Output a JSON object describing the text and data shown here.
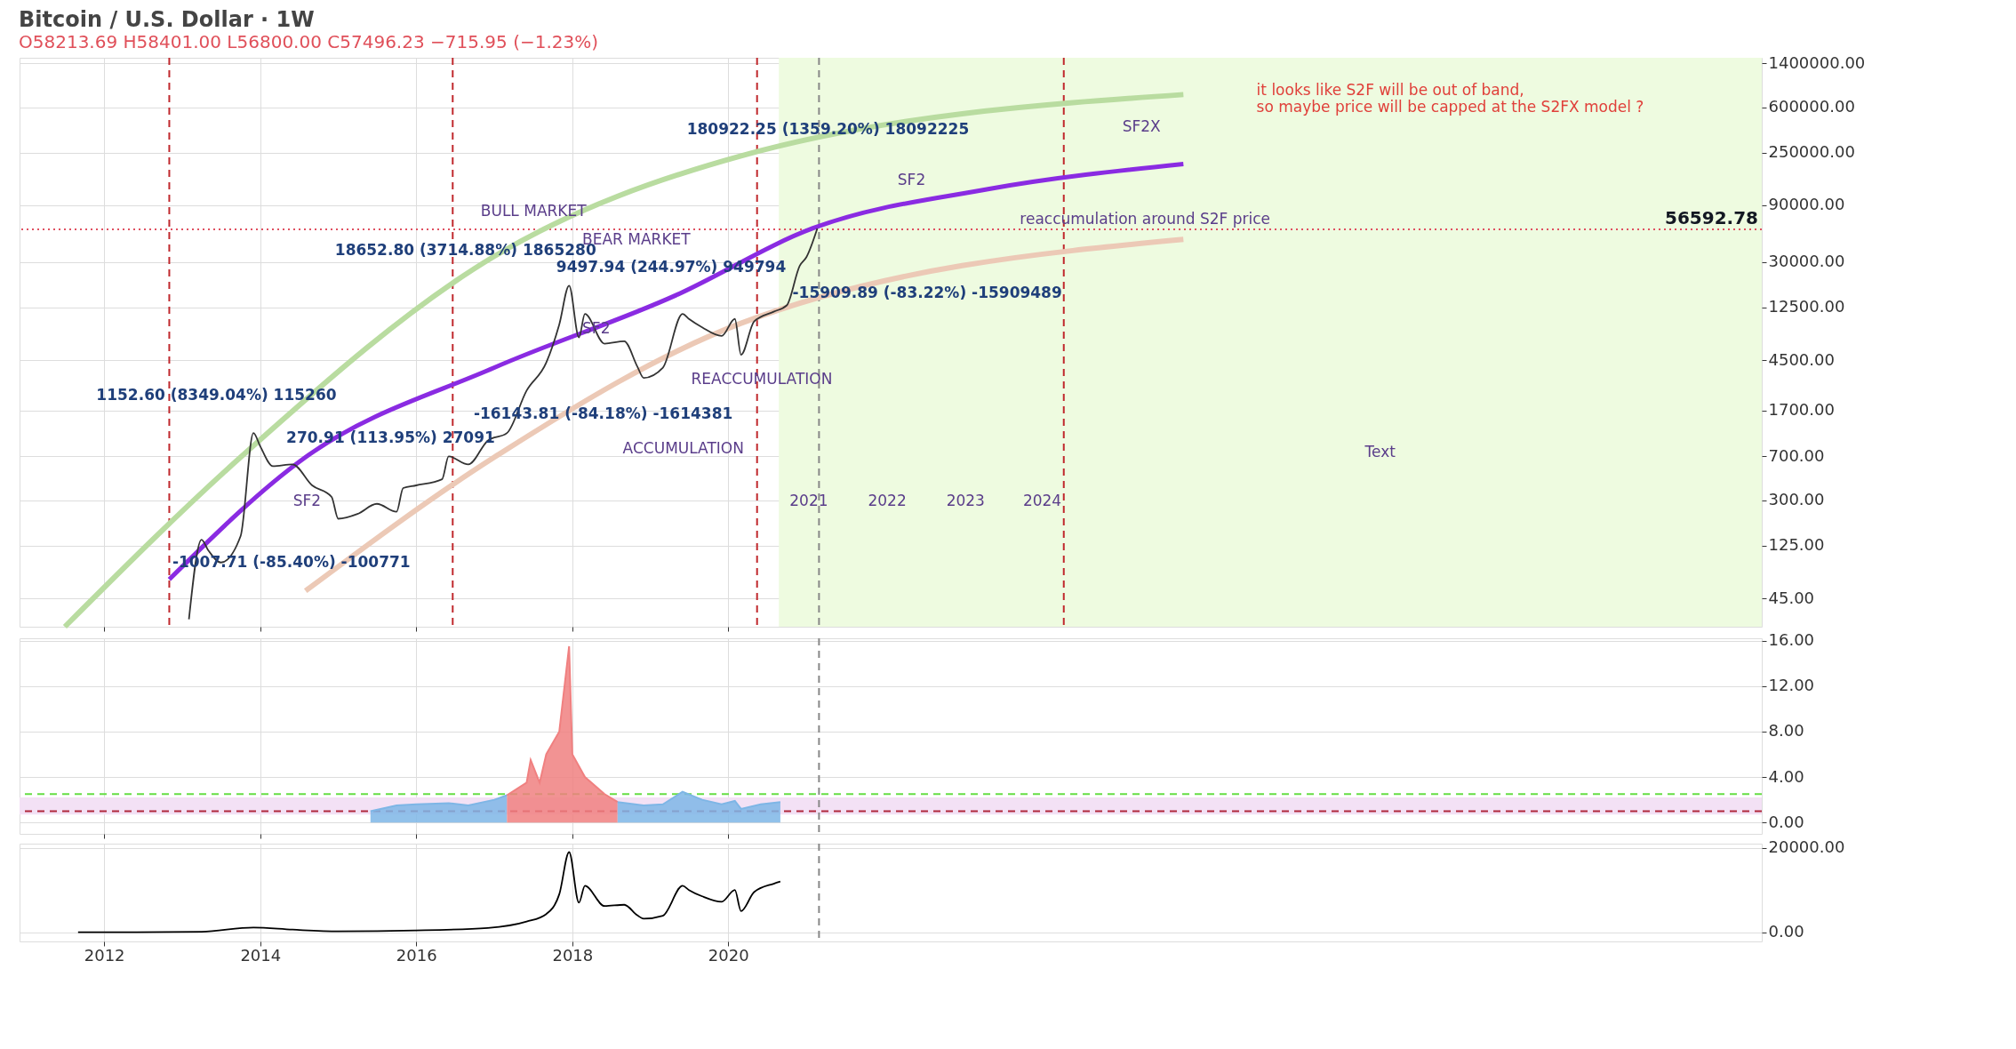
{
  "chart_data": [
    {
      "type": "line",
      "title": "Bitcoin / U.S. Dollar · 1W",
      "subtitle": "O58213.69 H58401.00 L56800.00 C57496.23 −715.95 (−1.23%)",
      "log": "y",
      "grid": true,
      "tick_labels": "y",
      "xlim": [
        "2010-12-01",
        "2033-04-01"
      ],
      "xticks": [
        "2012",
        "2014",
        "2016",
        "2018",
        "2020"
      ],
      "ylim": [
        26,
        1560000
      ],
      "yticks": [
        {
          "value": 45,
          "label": "45.00"
        },
        {
          "value": 125,
          "label": "125.00"
        },
        {
          "value": 300,
          "label": "300.00"
        },
        {
          "value": 700,
          "label": "700.00"
        },
        {
          "value": 1700,
          "label": "1700.00"
        },
        {
          "value": 4500,
          "label": "4500.00"
        },
        {
          "value": 12500,
          "label": "12500.00"
        },
        {
          "value": 30000,
          "label": "30000.00"
        },
        {
          "value": 90000,
          "label": "90000.00"
        },
        {
          "value": 250000,
          "label": "250000.00"
        },
        {
          "value": 600000,
          "label": "600000.00"
        },
        {
          "value": 1400000,
          "label": "1400000.00"
        }
      ],
      "series": [
        {
          "color": "#b9dca0",
          "x": [
            "2011-07",
            "2013-10",
            "2017-01",
            "2020-03",
            "2025-11"
          ],
          "values": [
            26,
            690,
            33600,
            234000,
            766000
          ]
        },
        {
          "color": "#ecc9b6",
          "x": [
            "2014-08",
            "2017-01",
            "2020-03",
            "2025-11"
          ],
          "values": [
            52,
            690,
            9200,
            46500
          ]
        },
        {
          "color": "#8a2be2",
          "x": [
            "2012-11",
            "2014-08",
            "2017-01",
            "2019-05",
            "2021-02",
            "2023-05",
            "2025-11"
          ],
          "values": [
            65,
            690,
            3900,
            15800,
            57800,
            123000,
            200000
          ]
        },
        {
          "color": "#333333",
          "x": [
            "2013-02",
            "2013-04",
            "2013-05",
            "2013-07",
            "2013-10",
            "2013-11-30",
            "2014-01",
            "2014-03",
            "2014-06",
            "2014-09",
            "2014-12",
            "2015-01",
            "2015-04",
            "2015-07",
            "2015-10",
            "2015-11",
            "2016-01",
            "2016-05",
            "2016-06",
            "2016-09",
            "2016-12",
            "2017-03",
            "2017-06",
            "2017-09",
            "2017-11",
            "2017-12-17",
            "2018-02",
            "2018-03",
            "2018-06",
            "2018-09",
            "2018-11",
            "2018-12",
            "2019-03",
            "2019-06",
            "2019-07",
            "2019-09",
            "2019-12",
            "2020-02",
            "2020-03",
            "2020-05",
            "2020-08",
            "2020-10",
            "2020-12",
            "2021-01",
            "2021-02-21"
          ],
          "values": [
            30,
            140,
            115,
            90,
            150,
            1100,
            850,
            580,
            600,
            400,
            320,
            210,
            230,
            280,
            240,
            380,
            400,
            450,
            700,
            600,
            950,
            1100,
            2500,
            4300,
            9000,
            19000,
            7000,
            11000,
            6200,
            6500,
            4000,
            3200,
            3900,
            11000,
            10000,
            8500,
            7200,
            10000,
            5000,
            9500,
            11500,
            13000,
            28000,
            33000,
            57496.23
          ]
        }
      ],
      "bands": [
        {
          "axis": "x",
          "from": "2020-08-25",
          "to": "2033-04-01",
          "color": "#eefbe0"
        }
      ],
      "ref_lines": [
        {
          "axis": "y",
          "value": 56592.78,
          "label": "56592.78",
          "color": "#e05060",
          "line_style": "dotted"
        },
        {
          "axis": "x",
          "value": "2012-11-01",
          "color": "#c0282d",
          "line_style": "dashed"
        },
        {
          "axis": "x",
          "value": "2016-06-20",
          "color": "#c0282d",
          "line_style": "dashed"
        },
        {
          "axis": "x",
          "value": "2020-05-15",
          "color": "#c0282d",
          "line_style": "dashed"
        },
        {
          "axis": "x",
          "value": "2024-04-20",
          "color": "#c0282d",
          "line_style": "dashed"
        },
        {
          "axis": "x",
          "value": "2021-03-01",
          "color": "#888888",
          "line_style": "dashed"
        }
      ],
      "annotations": [
        "1152.60 (8349.04%) 115260",
        "270.91 (113.95%) 27091",
        "-1007.71 (-85.40%) -100771",
        "18652.80 (3714.88%) 1865280",
        "9497.94 (244.97%) 949794",
        "-16143.81 (-84.18%) -1614381",
        "180922.25 (1359.20%) 18092225",
        "-15909.89 (-83.22%) -15909489",
        "BULL MARKET",
        "BEAR MARKET",
        "SF2",
        "SF2",
        "SF2",
        "SF2X",
        "REACCUMULATION",
        "ACCUMULATION",
        "reaccumulation around S2F price",
        "it looks like S2F will be out of band,\nso maybe price will be capped at the S2FX model ?",
        "Text",
        "2021",
        "2022",
        "2023",
        "2024"
      ]
    },
    {
      "type": "area",
      "grid": true,
      "tick_labels": "y",
      "xlim": [
        "2010-12-01",
        "2033-04-01"
      ],
      "xticks": [
        "2012",
        "2014",
        "2016",
        "2018",
        "2020"
      ],
      "ylim": [
        -1,
        16.2
      ],
      "yticks": [
        {
          "value": 0,
          "label": "0.00"
        },
        {
          "value": 4,
          "label": "4.00"
        },
        {
          "value": 8,
          "label": "8.00"
        },
        {
          "value": 12,
          "label": "12.00"
        },
        {
          "value": 16,
          "label": "16.00"
        }
      ],
      "series": [
        {
          "color": "#7eb6e6",
          "x": [
            "2015-06",
            "2015-10",
            "2016-01",
            "2016-06",
            "2016-09",
            "2017-01",
            "2017-03"
          ],
          "values": [
            1.0,
            1.5,
            1.6,
            1.7,
            1.5,
            2.0,
            2.4
          ]
        },
        {
          "color": "#f08080",
          "x": [
            "2017-03",
            "2017-06",
            "2017-06-20",
            "2017-08",
            "2017-09",
            "2017-11",
            "2017-12-17",
            "2018-01",
            "2018-03",
            "2018-06",
            "2018-08"
          ],
          "values": [
            2.4,
            3.5,
            5.5,
            3.5,
            6,
            8,
            15.5,
            6,
            4,
            2.5,
            1.8
          ]
        },
        {
          "color": "#7eb6e6",
          "x": [
            "2018-08",
            "2018-12",
            "2019-03",
            "2019-06",
            "2019-09",
            "2019-12",
            "2020-02",
            "2020-03",
            "2020-06",
            "2020-09"
          ],
          "values": [
            1.8,
            1.5,
            1.6,
            2.7,
            2.0,
            1.6,
            1.9,
            1.2,
            1.6,
            1.8
          ]
        }
      ],
      "bands": [
        {
          "axis": "y",
          "from": 0.7,
          "to": 2.2,
          "color": "#f3e1f5"
        }
      ],
      "ref_lines": [
        {
          "axis": "y",
          "value": 2.5,
          "color": "#66dd44",
          "line_style": "dashed"
        },
        {
          "axis": "y",
          "value": 1.0,
          "color": "#b0283d",
          "line_style": "dashed"
        },
        {
          "axis": "x",
          "value": "2021-03-01",
          "color": "#888888",
          "line_style": "dashed"
        }
      ]
    },
    {
      "type": "line",
      "grid": true,
      "xlim": [
        "2010-12-01",
        "2033-04-01"
      ],
      "xticks": [
        "2012",
        "2014",
        "2016",
        "2018",
        "2020"
      ],
      "ylim": [
        -2200,
        21000
      ],
      "yticks": [
        {
          "value": 0,
          "label": "0.00"
        },
        {
          "value": 20000,
          "label": "20000.00"
        }
      ],
      "series": [
        {
          "color": "#000000",
          "x": [
            "2011-09",
            "2012-06",
            "2013-04",
            "2013-11-30",
            "2014-06",
            "2015-01",
            "2016-01",
            "2016-12",
            "2017-06",
            "2017-09",
            "2017-11",
            "2017-12-17",
            "2018-02",
            "2018-03",
            "2018-06",
            "2018-09",
            "2018-11",
            "2018-12",
            "2019-03",
            "2019-06",
            "2019-07",
            "2019-09",
            "2019-12",
            "2020-02",
            "2020-03",
            "2020-05",
            "2020-08",
            "2020-09"
          ],
          "values": [
            0,
            0,
            100,
            1100,
            600,
            200,
            400,
            1000,
            2500,
            4300,
            9000,
            19000,
            7000,
            11000,
            6200,
            6500,
            4000,
            3200,
            3900,
            11000,
            10000,
            8500,
            7200,
            10000,
            5000,
            9500,
            11500,
            12000
          ]
        }
      ],
      "ref_lines": [
        {
          "axis": "x",
          "value": "2021-03-01",
          "color": "#888888",
          "line_style": "dashed"
        }
      ]
    }
  ]
}
